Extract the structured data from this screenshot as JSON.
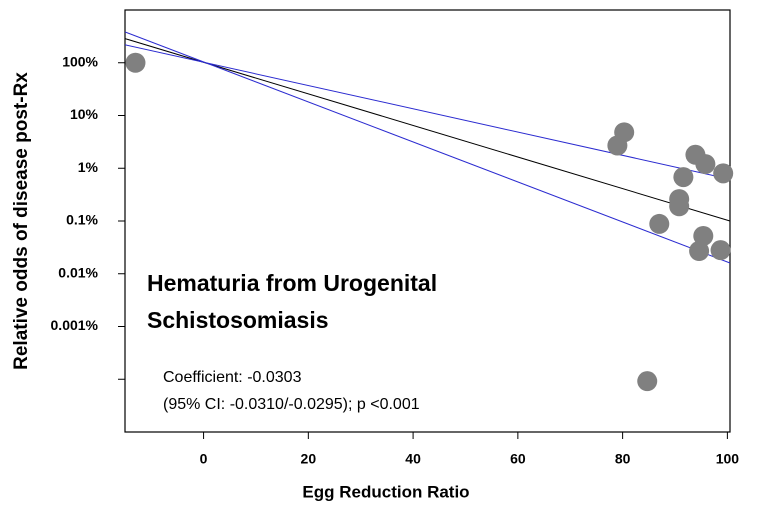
{
  "chart_data": {
    "type": "scatter",
    "x_label": "Egg Reduction Ratio",
    "y_label": "Relative odds of disease post-Rx",
    "title_lines": [
      "Hematuria from Urogenital",
      "Schistosomiasis"
    ],
    "annotation_lines": [
      "Coefficient: -0.0303",
      "(95% CI: -0.0310/-0.0295); p <0.001"
    ],
    "log_y": true,
    "xlim": [
      -15,
      100.5
    ],
    "ylim": [
      1e-05,
      1000
    ],
    "xticks": [
      0,
      20,
      40,
      60,
      80,
      100
    ],
    "yticks": [
      {
        "value": 100,
        "label": "100%"
      },
      {
        "value": 10,
        "label": "10%"
      },
      {
        "value": 1,
        "label": "1%"
      },
      {
        "value": 0.1,
        "label": "0.1%"
      },
      {
        "value": 0.01,
        "label": "0.01%"
      },
      {
        "value": 0.001,
        "label": "0.001%"
      },
      {
        "value": 0.0001,
        "label": null
      }
    ],
    "color": "#808080",
    "x": [
      -13,
      79,
      80.3,
      93.9,
      95.8,
      99.2,
      91.6,
      90.8,
      90.8,
      87,
      95.4,
      94.6,
      98.7,
      84.7
    ],
    "values": [
      100,
      2.7,
      4.8,
      1.8,
      1.2,
      0.8,
      0.68,
      0.26,
      0.19,
      0.088,
      0.052,
      0.027,
      0.028,
      9.2e-05
    ],
    "lines": [
      {
        "color": "#000000",
        "x": [
          -15,
          100.5
        ],
        "y": [
          287,
          0.1
        ]
      },
      {
        "color": "#2b2bd0",
        "x": [
          -15,
          100.5
        ],
        "y": [
          219,
          0.62
        ]
      },
      {
        "color": "#2b2bd0",
        "x": [
          -15,
          100.5
        ],
        "y": [
          384,
          0.016
        ]
      }
    ]
  }
}
